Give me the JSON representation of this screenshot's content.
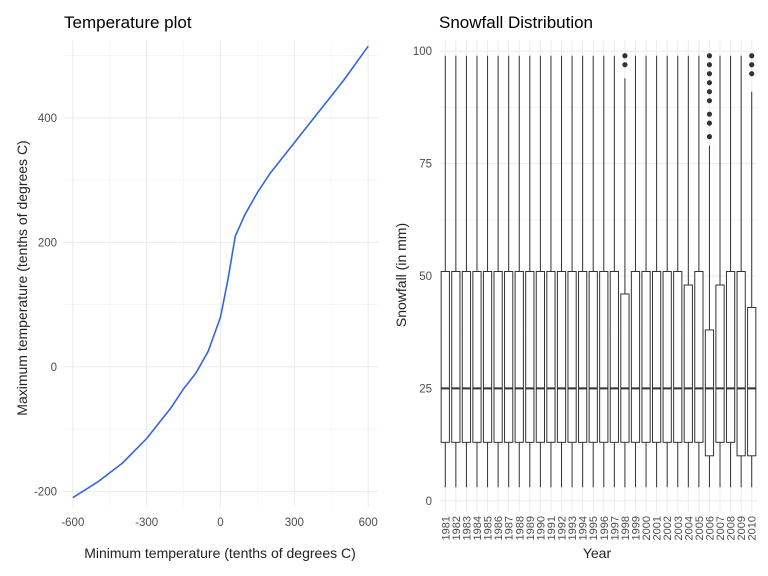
{
  "chart_data": [
    {
      "type": "line",
      "title": "Temperature plot",
      "xlabel": "Minimum temperature (tenths of degrees C)",
      "ylabel": "Maximum temperature (tenths of degrees C)",
      "xlim": [
        -600,
        600
      ],
      "ylim": [
        -200,
        500
      ],
      "xticks": [
        -600,
        -300,
        0,
        300,
        600
      ],
      "yticks": [
        -200,
        0,
        200,
        400
      ],
      "grid": true,
      "series": [
        {
          "color": "#3366dd",
          "x": [
            -600,
            -500,
            -400,
            -300,
            -200,
            -150,
            -100,
            -50,
            0,
            30,
            60,
            100,
            150,
            200,
            300,
            400,
            500,
            600
          ],
          "y": [
            -210,
            -185,
            -155,
            -115,
            -65,
            -35,
            -10,
            25,
            80,
            140,
            210,
            245,
            280,
            310,
            360,
            410,
            460,
            515
          ]
        }
      ]
    },
    {
      "type": "box",
      "title": "Snowfall Distribution",
      "xlabel": "Year",
      "ylabel": "Snowfall (in mm)",
      "ylim": [
        0,
        100
      ],
      "yticks": [
        0,
        25,
        50,
        75,
        100
      ],
      "grid": true,
      "categories": [
        "1981",
        "1982",
        "1983",
        "1984",
        "1985",
        "1986",
        "1987",
        "1988",
        "1989",
        "1990",
        "1991",
        "1992",
        "1993",
        "1994",
        "1995",
        "1996",
        "1997",
        "1998",
        "1999",
        "2000",
        "2001",
        "2002",
        "2003",
        "2004",
        "2005",
        "2006",
        "2007",
        "2008",
        "2009",
        "2010"
      ],
      "boxes": [
        {
          "min": 3,
          "q1": 13,
          "median": 25,
          "q3": 51,
          "max": 99,
          "outliers": []
        },
        {
          "min": 3,
          "q1": 13,
          "median": 25,
          "q3": 51,
          "max": 99,
          "outliers": []
        },
        {
          "min": 3,
          "q1": 13,
          "median": 25,
          "q3": 51,
          "max": 99,
          "outliers": []
        },
        {
          "min": 3,
          "q1": 13,
          "median": 25,
          "q3": 51,
          "max": 99,
          "outliers": []
        },
        {
          "min": 3,
          "q1": 13,
          "median": 25,
          "q3": 51,
          "max": 99,
          "outliers": []
        },
        {
          "min": 3,
          "q1": 13,
          "median": 25,
          "q3": 51,
          "max": 99,
          "outliers": []
        },
        {
          "min": 3,
          "q1": 13,
          "median": 25,
          "q3": 51,
          "max": 99,
          "outliers": []
        },
        {
          "min": 3,
          "q1": 13,
          "median": 25,
          "q3": 51,
          "max": 99,
          "outliers": []
        },
        {
          "min": 3,
          "q1": 13,
          "median": 25,
          "q3": 51,
          "max": 99,
          "outliers": []
        },
        {
          "min": 3,
          "q1": 13,
          "median": 25,
          "q3": 51,
          "max": 99,
          "outliers": []
        },
        {
          "min": 3,
          "q1": 13,
          "median": 25,
          "q3": 51,
          "max": 99,
          "outliers": []
        },
        {
          "min": 3,
          "q1": 13,
          "median": 25,
          "q3": 51,
          "max": 99,
          "outliers": []
        },
        {
          "min": 3,
          "q1": 13,
          "median": 25,
          "q3": 51,
          "max": 99,
          "outliers": []
        },
        {
          "min": 3,
          "q1": 13,
          "median": 25,
          "q3": 51,
          "max": 99,
          "outliers": []
        },
        {
          "min": 3,
          "q1": 13,
          "median": 25,
          "q3": 51,
          "max": 99,
          "outliers": []
        },
        {
          "min": 3,
          "q1": 13,
          "median": 25,
          "q3": 51,
          "max": 99,
          "outliers": []
        },
        {
          "min": 3,
          "q1": 13,
          "median": 25,
          "q3": 51,
          "max": 99,
          "outliers": []
        },
        {
          "min": 3,
          "q1": 13,
          "median": 25,
          "q3": 46,
          "max": 94,
          "outliers": [
            97,
            99
          ]
        },
        {
          "min": 3,
          "q1": 13,
          "median": 25,
          "q3": 51,
          "max": 99,
          "outliers": []
        },
        {
          "min": 3,
          "q1": 13,
          "median": 25,
          "q3": 51,
          "max": 99,
          "outliers": []
        },
        {
          "min": 3,
          "q1": 13,
          "median": 25,
          "q3": 51,
          "max": 99,
          "outliers": []
        },
        {
          "min": 3,
          "q1": 13,
          "median": 25,
          "q3": 51,
          "max": 99,
          "outliers": []
        },
        {
          "min": 3,
          "q1": 13,
          "median": 25,
          "q3": 51,
          "max": 99,
          "outliers": []
        },
        {
          "min": 3,
          "q1": 13,
          "median": 25,
          "q3": 48,
          "max": 99,
          "outliers": []
        },
        {
          "min": 3,
          "q1": 13,
          "median": 25,
          "q3": 51,
          "max": 99,
          "outliers": []
        },
        {
          "min": 3,
          "q1": 10,
          "median": 25,
          "q3": 38,
          "max": 79,
          "outliers": [
            81,
            84,
            86,
            89,
            91,
            93,
            95,
            97,
            99
          ]
        },
        {
          "min": 3,
          "q1": 13,
          "median": 25,
          "q3": 48,
          "max": 99,
          "outliers": []
        },
        {
          "min": 3,
          "q1": 13,
          "median": 25,
          "q3": 51,
          "max": 99,
          "outliers": []
        },
        {
          "min": 3,
          "q1": 10,
          "median": 25,
          "q3": 51,
          "max": 99,
          "outliers": []
        },
        {
          "min": 3,
          "q1": 10,
          "median": 25,
          "q3": 43,
          "max": 91,
          "outliers": [
            95,
            97,
            99
          ]
        }
      ]
    }
  ]
}
